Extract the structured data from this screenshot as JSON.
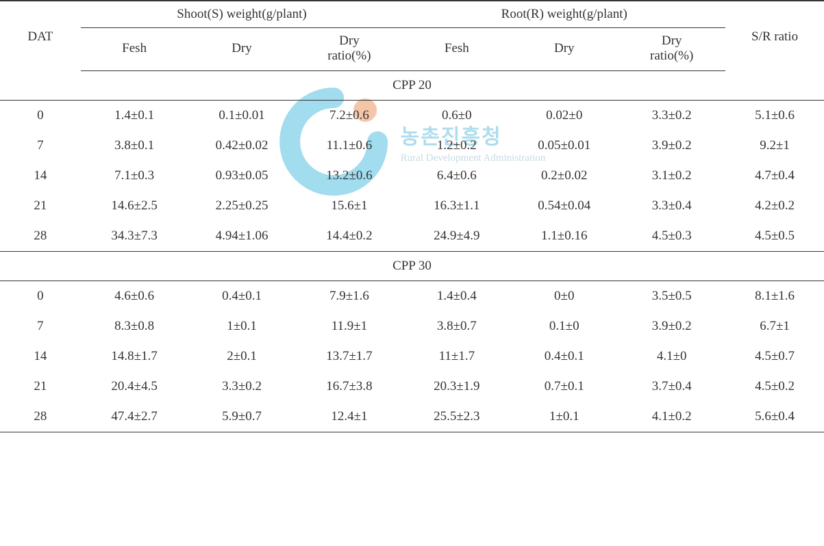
{
  "watermark": {
    "kr_text": "농촌진흥청",
    "en_text": "Rural Development Administration",
    "circle_outer": "#0aa5d6",
    "circle_dot": "#e36b1f",
    "inner_bg": "#ffffff",
    "kr_color": "#2aa7d4",
    "en_color": "#6aa0b8",
    "kr_fontsize": 30,
    "en_fontsize": 15
  },
  "table": {
    "font_family": "Times New Roman",
    "base_fontsize": 19,
    "border_color": "#333333",
    "headers": {
      "dat": "DAT",
      "shoot_group": "Shoot(S) weight(g/plant)",
      "root_group": "Root(R) weight(g/plant)",
      "sr_ratio": "S/R ratio",
      "fesh": "Fesh",
      "dry": "Dry",
      "dry_ratio": "Dry\nratio(%)"
    },
    "sections": [
      {
        "label": "CPP 20",
        "rows": [
          {
            "dat": "0",
            "s_fesh": "1.4±0.1",
            "s_dry": "0.1±0.01",
            "s_ratio": "7.2±0.6",
            "r_fesh": "0.6±0",
            "r_dry": "0.02±0",
            "r_ratio": "3.3±0.2",
            "sr": "5.1±0.6"
          },
          {
            "dat": "7",
            "s_fesh": "3.8±0.1",
            "s_dry": "0.42±0.02",
            "s_ratio": "11.1±0.6",
            "r_fesh": "1.2±0.2",
            "r_dry": "0.05±0.01",
            "r_ratio": "3.9±0.2",
            "sr": "9.2±1"
          },
          {
            "dat": "14",
            "s_fesh": "7.1±0.3",
            "s_dry": "0.93±0.05",
            "s_ratio": "13.2±0.6",
            "r_fesh": "6.4±0.6",
            "r_dry": "0.2±0.02",
            "r_ratio": "3.1±0.2",
            "sr": "4.7±0.4"
          },
          {
            "dat": "21",
            "s_fesh": "14.6±2.5",
            "s_dry": "2.25±0.25",
            "s_ratio": "15.6±1",
            "r_fesh": "16.3±1.1",
            "r_dry": "0.54±0.04",
            "r_ratio": "3.3±0.4",
            "sr": "4.2±0.2"
          },
          {
            "dat": "28",
            "s_fesh": "34.3±7.3",
            "s_dry": "4.94±1.06",
            "s_ratio": "14.4±0.2",
            "r_fesh": "24.9±4.9",
            "r_dry": "1.1±0.16",
            "r_ratio": "4.5±0.3",
            "sr": "4.5±0.5"
          }
        ]
      },
      {
        "label": "CPP 30",
        "rows": [
          {
            "dat": "0",
            "s_fesh": "4.6±0.6",
            "s_dry": "0.4±0.1",
            "s_ratio": "7.9±1.6",
            "r_fesh": "1.4±0.4",
            "r_dry": "0±0",
            "r_ratio": "3.5±0.5",
            "sr": "8.1±1.6"
          },
          {
            "dat": "7",
            "s_fesh": "8.3±0.8",
            "s_dry": "1±0.1",
            "s_ratio": "11.9±1",
            "r_fesh": "3.8±0.7",
            "r_dry": "0.1±0",
            "r_ratio": "3.9±0.2",
            "sr": "6.7±1"
          },
          {
            "dat": "14",
            "s_fesh": "14.8±1.7",
            "s_dry": "2±0.1",
            "s_ratio": "13.7±1.7",
            "r_fesh": "11±1.7",
            "r_dry": "0.4±0.1",
            "r_ratio": "4.1±0",
            "sr": "4.5±0.7"
          },
          {
            "dat": "21",
            "s_fesh": "20.4±4.5",
            "s_dry": "3.3±0.2",
            "s_ratio": "16.7±3.8",
            "r_fesh": "20.3±1.9",
            "r_dry": "0.7±0.1",
            "r_ratio": "3.7±0.4",
            "sr": "4.5±0.2"
          },
          {
            "dat": "28",
            "s_fesh": "47.4±2.7",
            "s_dry": "5.9±0.7",
            "s_ratio": "12.4±1",
            "r_fesh": "25.5±2.3",
            "r_dry": "1±0.1",
            "r_ratio": "4.1±0.2",
            "sr": "5.6±0.4"
          }
        ]
      }
    ]
  }
}
